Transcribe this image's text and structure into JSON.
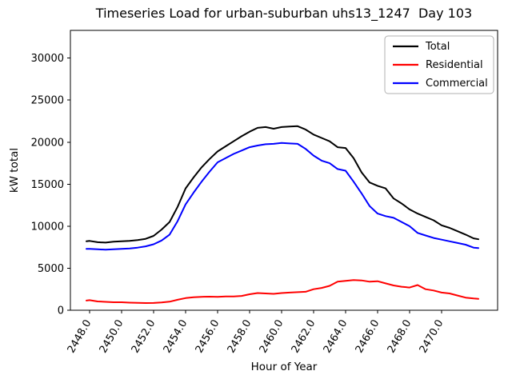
{
  "figure": {
    "window_background": "#ffffff",
    "axes_edge_color": "#000000"
  },
  "legend": {
    "entries": [
      {
        "label": "Total",
        "color": "#000000"
      },
      {
        "label": "Residential",
        "color": "#ff0000"
      },
      {
        "label": "Commercial",
        "color": "#0000ff"
      }
    ]
  },
  "chart_data": {
    "type": "line",
    "title": "Timeseries Load for urban-suburban uhs13_1247  Day 103",
    "xlabel": "Hour of Year",
    "ylabel": "kW total",
    "xlim": [
      2446.8,
      2473.5
    ],
    "ylim": [
      0,
      33300
    ],
    "grid": false,
    "legend_position": "upper right",
    "xticks": {
      "values": [
        2448,
        2450,
        2452,
        2454,
        2456,
        2458,
        2460,
        2462,
        2464,
        2466,
        2468,
        2470
      ],
      "labels": [
        "2448.0",
        "2450.0",
        "2452.0",
        "2454.0",
        "2456.0",
        "2458.0",
        "2460.0",
        "2462.0",
        "2464.0",
        "2466.0",
        "2468.0",
        "2470.0"
      ],
      "rotation_deg": 60
    },
    "yticks": {
      "values": [
        0,
        5000,
        10000,
        15000,
        20000,
        25000,
        30000
      ],
      "labels": [
        "0",
        "5000",
        "10000",
        "15000",
        "20000",
        "25000",
        "30000"
      ]
    },
    "x": [
      2447.8,
      2448.0,
      2448.5,
      2449.0,
      2449.5,
      2450.0,
      2450.5,
      2451.0,
      2451.5,
      2452.0,
      2452.5,
      2453.0,
      2453.5,
      2454.0,
      2454.5,
      2455.0,
      2455.5,
      2456.0,
      2456.5,
      2457.0,
      2457.5,
      2458.0,
      2458.5,
      2459.0,
      2459.5,
      2460.0,
      2460.5,
      2461.0,
      2461.5,
      2462.0,
      2462.5,
      2463.0,
      2463.5,
      2464.0,
      2464.5,
      2465.0,
      2465.5,
      2466.0,
      2466.5,
      2467.0,
      2467.5,
      2468.0,
      2468.5,
      2469.0,
      2469.5,
      2470.0,
      2470.5,
      2471.0,
      2471.5,
      2472.0,
      2472.3
    ],
    "series": [
      {
        "name": "Total",
        "color": "#000000",
        "values": [
          8200,
          8250,
          8100,
          8050,
          8150,
          8200,
          8250,
          8350,
          8500,
          8850,
          9600,
          10500,
          12300,
          14500,
          15800,
          17000,
          18000,
          18900,
          19500,
          20100,
          20700,
          21250,
          21700,
          21800,
          21600,
          21800,
          21850,
          21900,
          21500,
          20900,
          20500,
          20100,
          19400,
          19300,
          18100,
          16400,
          15200,
          14800,
          14500,
          13300,
          12700,
          12000,
          11500,
          11100,
          10700,
          10100,
          9800,
          9400,
          9000,
          8550,
          8450
        ]
      },
      {
        "name": "Residential",
        "color": "#ff0000",
        "values": [
          1150,
          1200,
          1050,
          1000,
          950,
          950,
          900,
          880,
          860,
          870,
          920,
          1020,
          1250,
          1450,
          1550,
          1600,
          1620,
          1600,
          1650,
          1650,
          1700,
          1900,
          2050,
          2000,
          1950,
          2050,
          2100,
          2150,
          2200,
          2500,
          2650,
          2900,
          3400,
          3500,
          3600,
          3550,
          3400,
          3450,
          3200,
          2950,
          2800,
          2700,
          3000,
          2500,
          2350,
          2100,
          2000,
          1750,
          1500,
          1400,
          1350
        ]
      },
      {
        "name": "Commercial",
        "color": "#0000ff",
        "values": [
          7300,
          7300,
          7250,
          7200,
          7250,
          7300,
          7350,
          7450,
          7600,
          7850,
          8300,
          9000,
          10600,
          12600,
          14000,
          15300,
          16500,
          17600,
          18100,
          18600,
          19000,
          19400,
          19600,
          19750,
          19800,
          19900,
          19850,
          19800,
          19200,
          18400,
          17800,
          17500,
          16800,
          16600,
          15300,
          13900,
          12400,
          11500,
          11200,
          11000,
          10500,
          10000,
          9200,
          8900,
          8600,
          8400,
          8200,
          8000,
          7800,
          7450,
          7400
        ]
      }
    ]
  }
}
